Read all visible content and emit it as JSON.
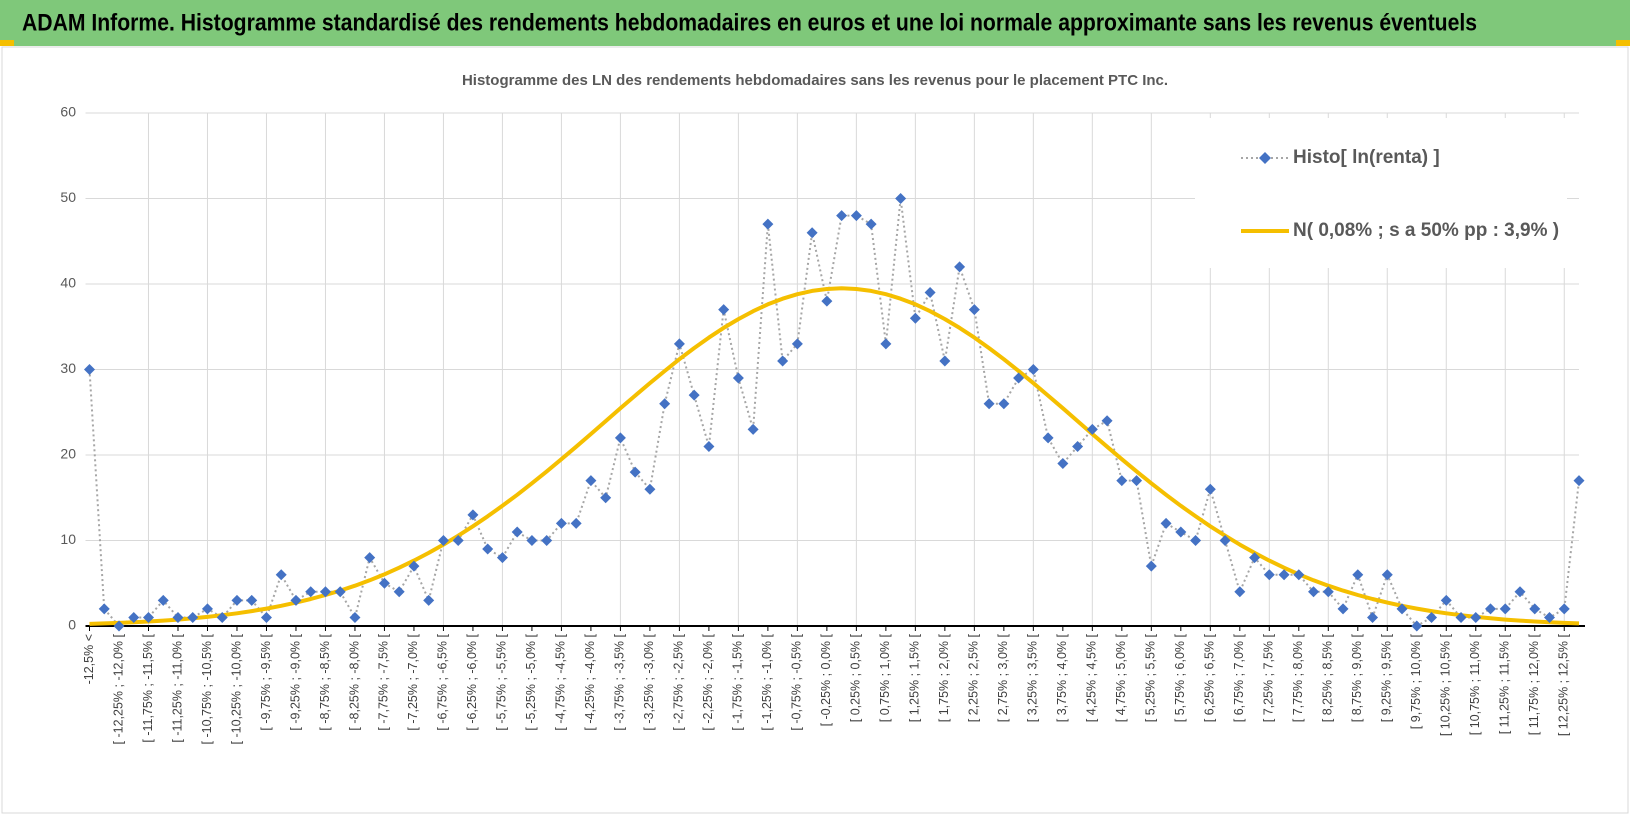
{
  "header": {
    "title": "ADAM Informe. Histogramme standardisé des rendements hebdomadaires en euros et une loi normale approximante sans les revenus éventuels"
  },
  "chart_data": {
    "type": "line",
    "title": "Histogramme  des LN des rendements hebdomadaires sans les revenus pour le placement PTC Inc.",
    "categories": [
      "-12,5% <",
      null,
      "[ -12,25% ; -12,0% [",
      null,
      "[ -11,75% ; -11,5% [",
      null,
      "[ -11,25% ; -11,0% [",
      null,
      "[ -10,75% ; -10,5% [",
      null,
      "[ -10,25% ; -10,0% [",
      null,
      "[ -9,75% ; -9,5% [",
      null,
      "[ -9,25% ; -9,0% [",
      null,
      "[ -8,75% ; -8,5% [",
      null,
      "[ -8,25% ; -8,0% [",
      null,
      "[ -7,75% ; -7,5% [",
      null,
      "[ -7,25% ; -7,0% [",
      null,
      "[ -6,75% ; -6,5% [",
      null,
      "[ -6,25% ; -6,0% [",
      null,
      "[ -5,75% ; -5,5% [",
      null,
      "[ -5,25% ; -5,0% [",
      null,
      "[ -4,75% ; -4,5% [",
      null,
      "[ -4,25% ; -4,0% [",
      null,
      "[ -3,75% ; -3,5% [",
      null,
      "[ -3,25% ; -3,0% [",
      null,
      "[ -2,75% ; -2,5% [",
      null,
      "[ -2,25% ; -2,0% [",
      null,
      "[ -1,75% ; -1,5% [",
      null,
      "[ -1,25% ; -1,0% [",
      null,
      "[ -0,75% ; -0,5% [",
      null,
      "[ -0,25% ; 0,0% [",
      null,
      "[ 0,25% ; 0,5% [",
      null,
      "[ 0,75% ; 1,0% [",
      null,
      "[ 1,25% ; 1,5% [",
      null,
      "[ 1,75% ; 2,0% [",
      null,
      "[ 2,25% ; 2,5% [",
      null,
      "[ 2,75% ; 3,0% [",
      null,
      "[ 3,25% ; 3,5% [",
      null,
      "[ 3,75% ; 4,0% [",
      null,
      "[ 4,25% ; 4,5% [",
      null,
      "[ 4,75% ; 5,0% [",
      null,
      "[ 5,25% ; 5,5% [",
      null,
      "[ 5,75% ; 6,0% [",
      null,
      "[ 6,25% ; 6,5% [",
      null,
      "[ 6,75% ; 7,0% [",
      null,
      "[ 7,25% ; 7,5% [",
      null,
      "[ 7,75% ; 8,0% [",
      null,
      "[ 8,25% ; 8,5% [",
      null,
      "[ 8,75% ; 9,0% [",
      null,
      "[ 9,25% ; 9,5% [",
      null,
      "[ 9,75% ; 10,0% [",
      null,
      "[ 10,25% ; 10,5% [",
      null,
      "[ 10,75% ; 11,0% [",
      null,
      "[ 11,25% ; 11,5% [",
      null,
      "[ 11,75% ; 12,0% [",
      null,
      "[ 12,25% ; 12,5% [",
      null
    ],
    "series": [
      {
        "name": "Histo[ ln(renta) ]",
        "color": "#4472c4",
        "line_color": "#a6a6a6",
        "values": [
          30,
          2,
          0,
          1,
          1,
          3,
          1,
          1,
          2,
          1,
          3,
          3,
          1,
          6,
          3,
          4,
          4,
          4,
          1,
          8,
          5,
          4,
          7,
          3,
          10,
          10,
          13,
          9,
          8,
          11,
          10,
          10,
          12,
          12,
          17,
          15,
          22,
          18,
          16,
          26,
          33,
          27,
          21,
          37,
          29,
          23,
          47,
          31,
          33,
          46,
          38,
          48,
          48,
          47,
          33,
          50,
          36,
          39,
          31,
          42,
          37,
          26,
          26,
          29,
          30,
          22,
          19,
          21,
          23,
          24,
          17,
          17,
          7,
          12,
          11,
          10,
          16,
          10,
          4,
          8,
          6,
          6,
          6,
          4,
          4,
          2,
          6,
          1,
          6,
          2,
          0,
          1,
          3,
          1,
          1,
          2,
          2,
          4,
          2,
          1,
          2,
          17
        ]
      },
      {
        "name": "N( 0,08% ; s a 50% pp : 3,9% )",
        "color": "#f5bf00",
        "values": [
          0.25,
          0.3,
          0.36,
          0.44,
          0.53,
          0.63,
          0.75,
          0.9,
          1.07,
          1.26,
          1.49,
          1.74,
          2.03,
          2.36,
          2.74,
          3.16,
          3.62,
          4.14,
          4.71,
          5.35,
          6.05,
          6.82,
          7.65,
          8.55,
          9.52,
          10.56,
          11.66,
          12.83,
          14.06,
          15.35,
          16.69,
          18.08,
          19.51,
          20.97,
          22.46,
          23.96,
          25.47,
          26.95,
          28.41,
          29.83,
          31.2,
          32.5,
          33.73,
          34.86,
          35.89,
          36.82,
          37.62,
          38.28,
          38.81,
          39.19,
          39.42,
          39.5,
          39.42,
          39.19,
          38.81,
          38.28,
          37.62,
          36.82,
          35.89,
          34.86,
          33.73,
          32.5,
          31.2,
          29.83,
          28.41,
          26.95,
          25.47,
          23.96,
          22.46,
          20.97,
          19.51,
          18.08,
          16.69,
          15.35,
          14.06,
          12.83,
          11.66,
          10.56,
          9.52,
          8.55,
          7.65,
          6.82,
          6.05,
          5.35,
          4.71,
          4.14,
          3.62,
          3.16,
          2.74,
          2.36,
          2.03,
          1.74,
          1.49,
          1.26,
          1.07,
          0.9,
          0.75,
          0.63,
          0.53,
          0.44,
          0.36,
          0.3
        ]
      }
    ],
    "ylim": [
      0,
      60
    ],
    "yticks": [
      0,
      10,
      20,
      30,
      40,
      50,
      60
    ],
    "grid": true,
    "legend": "top-right"
  }
}
